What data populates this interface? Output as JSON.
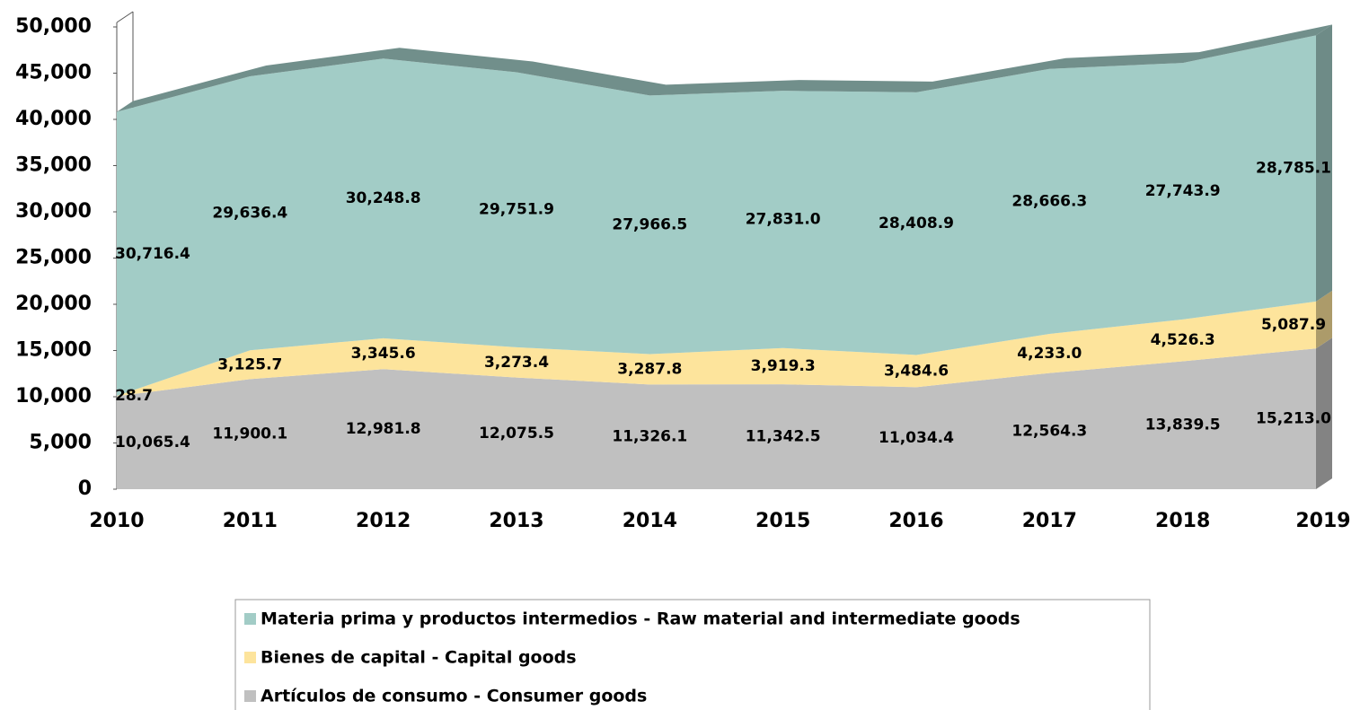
{
  "chart_data": {
    "type": "area",
    "categories": [
      "2010",
      "2011",
      "2012",
      "2013",
      "2014",
      "2015",
      "2016",
      "2017",
      "2018",
      "2019"
    ],
    "series": [
      {
        "name": "Artículos de consumo - Consumer goods",
        "color": "#c0c0c0",
        "values": [
          10065.4,
          11900.1,
          12981.8,
          12075.5,
          11326.1,
          11342.5,
          11034.4,
          12564.3,
          13839.5,
          15213.0
        ],
        "value_labels": [
          "10,065.4",
          "11,900.1",
          "12,981.8",
          "12,075.5",
          "11,326.1",
          "11,342.5",
          "11,034.4",
          "12,564.3",
          "13,839.5",
          "15,213.0"
        ]
      },
      {
        "name": "Bienes de capital - Capital goods",
        "color": "#fde49c",
        "values": [
          28.7,
          3125.7,
          3345.6,
          3273.4,
          3287.8,
          3919.3,
          3484.6,
          4233.0,
          4526.3,
          5087.9
        ],
        "value_labels": [
          "28.7",
          "3,125.7",
          "3,345.6",
          "3,273.4",
          "3,287.8",
          "3,919.3",
          "3,484.6",
          "4,233.0",
          "4,526.3",
          "5,087.9"
        ]
      },
      {
        "name": "Materia prima y productos intermedios - Raw material and intermediate goods",
        "color": "#a2ccc6",
        "values": [
          30716.4,
          29636.4,
          30248.8,
          29751.9,
          27966.5,
          27831.0,
          28408.9,
          28666.3,
          27743.9,
          28785.1
        ],
        "value_labels": [
          "30,716.4",
          "29,636.4",
          "30,248.8",
          "29,751.9",
          "27,966.5",
          "27,831.0",
          "28,408.9",
          "28,666.3",
          "27,743.9",
          "28,785.1"
        ]
      }
    ],
    "ylim": [
      0,
      50000
    ],
    "yticks": [
      0,
      {
        "value": 5000,
        "label": "5,000"
      },
      {
        "value": 10000,
        "label": "10,000"
      },
      {
        "value": 15000,
        "label": "15,000"
      },
      {
        "value": 20000,
        "label": "20,000"
      },
      {
        "value": 25000,
        "label": "25,000"
      },
      {
        "value": 30000,
        "label": "30,000"
      },
      {
        "value": 35000,
        "label": "35,000"
      },
      {
        "value": 40000,
        "label": "40,000"
      },
      {
        "value": 45000,
        "label": "45,000"
      },
      {
        "value": 50000,
        "label": "50,000"
      }
    ]
  }
}
